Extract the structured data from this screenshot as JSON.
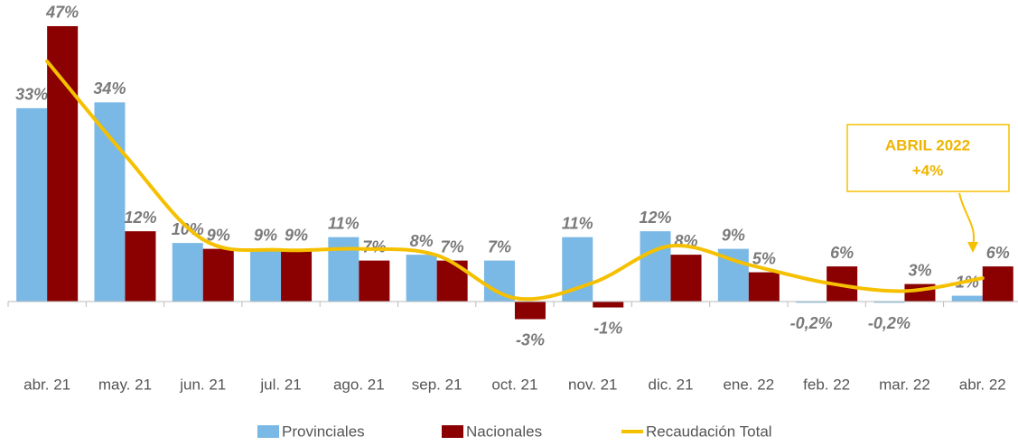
{
  "chart_data": {
    "type": "bar",
    "categories": [
      "abr. 21",
      "may. 21",
      "jun. 21",
      "jul. 21",
      "ago. 21",
      "sep. 21",
      "oct. 21",
      "nov. 21",
      "dic. 21",
      "ene. 22",
      "feb. 22",
      "mar. 22",
      "abr. 22"
    ],
    "series": [
      {
        "name": "Provinciales",
        "color": "#7ab8e5",
        "values": [
          33,
          34,
          10,
          9,
          11,
          8,
          7,
          11,
          12,
          9,
          -0.2,
          -0.2,
          1
        ],
        "value_labels": [
          "33%",
          "34%",
          "10%",
          "9%",
          "11%",
          "8%",
          "7%",
          "11%",
          "12%",
          "9%",
          "-0,2%",
          "-0,2%",
          "1%"
        ]
      },
      {
        "name": "Nacionales",
        "color": "#8b0000",
        "values": [
          47,
          12,
          9,
          9,
          7,
          7,
          -3,
          -1,
          8,
          5,
          6,
          3,
          6
        ],
        "value_labels": [
          "47%",
          "12%",
          "9%",
          "9%",
          "7%",
          "7%",
          "-3%",
          "-1%",
          "8%",
          "5%",
          "6%",
          "3%",
          "6%"
        ]
      },
      {
        "name": "Recaudación Total",
        "type": "line",
        "color": "#f5c000",
        "values": [
          41,
          25,
          10.6,
          8.8,
          9,
          7.9,
          0.6,
          3.2,
          9.5,
          6.3,
          3.2,
          1.8,
          4
        ]
      }
    ],
    "ylim": [
      -5,
      50
    ],
    "annotation": {
      "lines": [
        "ABRIL 2022",
        "+4%"
      ]
    }
  }
}
